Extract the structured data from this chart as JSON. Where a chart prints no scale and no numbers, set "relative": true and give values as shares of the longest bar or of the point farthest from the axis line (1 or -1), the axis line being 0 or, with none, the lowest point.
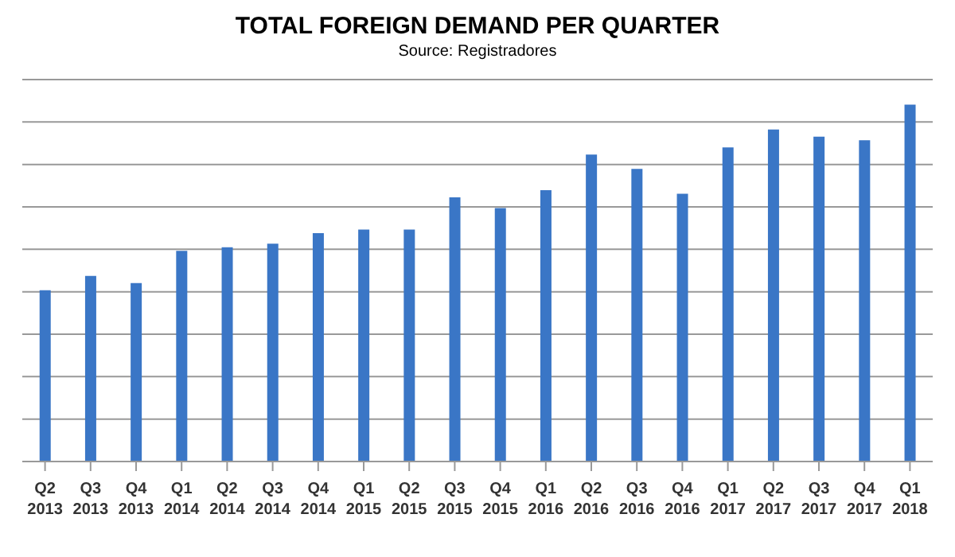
{
  "chart_data": {
    "type": "bar",
    "title": "TOTAL FOREIGN DEMAND PER QUARTER",
    "subtitle": "Source:  Registradores",
    "categories": [
      "Q2 2013",
      "Q3 2013",
      "Q4 2013",
      "Q1 2014",
      "Q2 2014",
      "Q3 2014",
      "Q4 2014",
      "Q1 2015",
      "Q2 2015",
      "Q3 2015",
      "Q4 2015",
      "Q1 2016",
      "Q2 2016",
      "Q3 2016",
      "Q4 2016",
      "Q1 2017",
      "Q2 2017",
      "Q3 2017",
      "Q4 2017",
      "Q1 2018"
    ],
    "values": [
      0.48,
      0.52,
      0.5,
      0.59,
      0.6,
      0.61,
      0.64,
      0.65,
      0.65,
      0.74,
      0.71,
      0.76,
      0.86,
      0.82,
      0.75,
      0.88,
      0.93,
      0.91,
      0.9,
      1
    ],
    "color": "#3a76c6",
    "relative": true,
    "grid": "y"
  }
}
